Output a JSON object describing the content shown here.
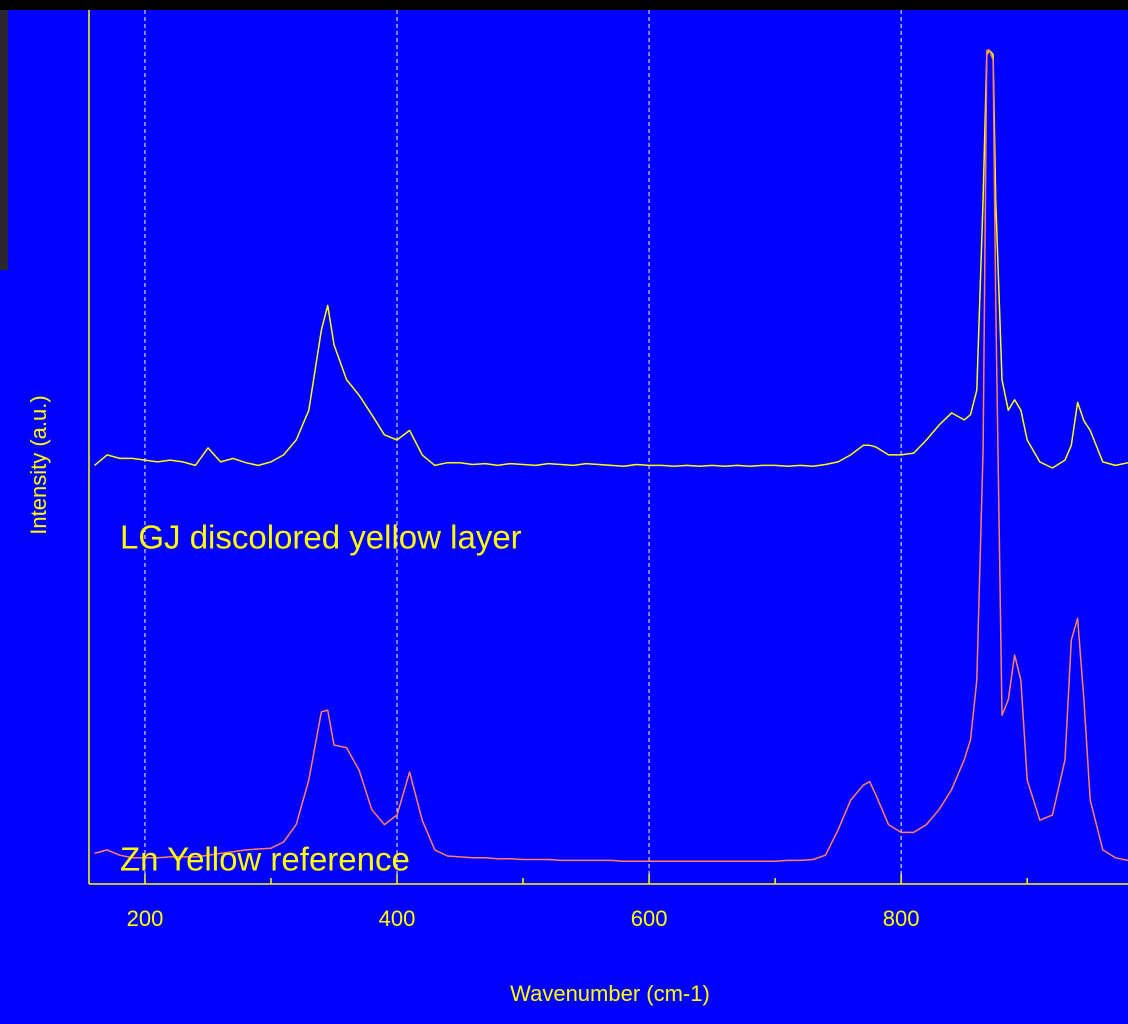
{
  "chart_data": {
    "type": "line",
    "x_label": "Wavenumber (cm-1)",
    "y_label": "Intensity (a.u.)",
    "xlim": [
      155.6,
      980
    ],
    "ylim": [
      0,
      100
    ],
    "xticks": [
      200,
      400,
      600,
      800
    ],
    "xminorticks": [
      300,
      500,
      700,
      900
    ],
    "grid": true,
    "x": [
      160,
      170,
      180,
      190,
      200,
      210,
      220,
      230,
      240,
      250,
      260,
      270,
      280,
      290,
      300,
      310,
      320,
      330,
      340,
      345,
      350,
      360,
      370,
      380,
      390,
      400,
      410,
      420,
      430,
      440,
      450,
      460,
      470,
      480,
      490,
      500,
      510,
      520,
      530,
      540,
      550,
      560,
      570,
      580,
      590,
      600,
      610,
      620,
      630,
      640,
      650,
      660,
      670,
      680,
      690,
      700,
      710,
      720,
      730,
      740,
      750,
      760,
      770,
      775,
      780,
      790,
      800,
      810,
      820,
      830,
      840,
      850,
      855,
      860,
      865,
      868,
      870,
      873,
      875,
      880,
      885,
      890,
      895,
      900,
      910,
      920,
      930,
      935,
      940,
      945,
      950,
      960,
      970,
      980
    ],
    "series": [
      {
        "name": "LGJ discolored yellow layer",
        "color": "#ffff00",
        "values": [
          47.9,
          49.1,
          48.7,
          48.7,
          48.5,
          48.3,
          48.5,
          48.3,
          47.9,
          49.9,
          48.3,
          48.7,
          48.2,
          47.9,
          48.3,
          49.1,
          50.8,
          54.2,
          63.4,
          66.2,
          61.7,
          57.7,
          55.9,
          53.7,
          51.4,
          50.8,
          51.9,
          49.1,
          47.9,
          48.2,
          48.2,
          48.0,
          48.1,
          47.9,
          48.1,
          48.0,
          47.9,
          48.1,
          48.0,
          47.9,
          48.1,
          48.0,
          47.9,
          47.8,
          48.0,
          47.9,
          47.9,
          47.8,
          47.9,
          47.8,
          47.9,
          47.8,
          47.9,
          47.8,
          47.9,
          47.9,
          47.8,
          47.9,
          47.8,
          48.0,
          48.3,
          49.1,
          50.2,
          50.2,
          50.0,
          49.1,
          49.1,
          49.3,
          50.8,
          52.5,
          53.9,
          53.1,
          53.7,
          56.5,
          78.3,
          94.9,
          95.4,
          94.9,
          78.3,
          57.7,
          54.2,
          55.4,
          54.2,
          50.8,
          48.3,
          47.6,
          48.5,
          50.2,
          55.1,
          53.0,
          51.9,
          48.3,
          47.9,
          48.2
        ]
      },
      {
        "name": "Zn Yellow reference",
        "color": "#ff8060",
        "values": [
          3.5,
          3.9,
          3.3,
          3.0,
          3.0,
          3.0,
          3.1,
          3.1,
          3.1,
          3.3,
          3.5,
          3.7,
          3.9,
          4.0,
          4.1,
          4.8,
          6.8,
          11.9,
          19.7,
          19.9,
          15.9,
          15.6,
          13.0,
          8.5,
          6.8,
          7.9,
          12.8,
          7.3,
          3.9,
          3.2,
          3.1,
          3.0,
          3.0,
          2.9,
          2.9,
          2.8,
          2.8,
          2.8,
          2.7,
          2.7,
          2.7,
          2.7,
          2.7,
          2.6,
          2.6,
          2.6,
          2.6,
          2.6,
          2.6,
          2.6,
          2.6,
          2.6,
          2.6,
          2.6,
          2.6,
          2.6,
          2.7,
          2.7,
          2.8,
          3.3,
          6.2,
          9.6,
          11.3,
          11.7,
          10.2,
          6.8,
          5.9,
          5.9,
          6.8,
          8.5,
          10.8,
          14.2,
          16.5,
          23.3,
          49.7,
          95.4,
          95.4,
          94.3,
          66.8,
          19.3,
          21.1,
          26.2,
          23.3,
          11.9,
          7.3,
          7.9,
          14.2,
          27.9,
          30.4,
          21.1,
          9.6,
          3.9,
          3.0,
          2.7
        ]
      }
    ]
  }
}
